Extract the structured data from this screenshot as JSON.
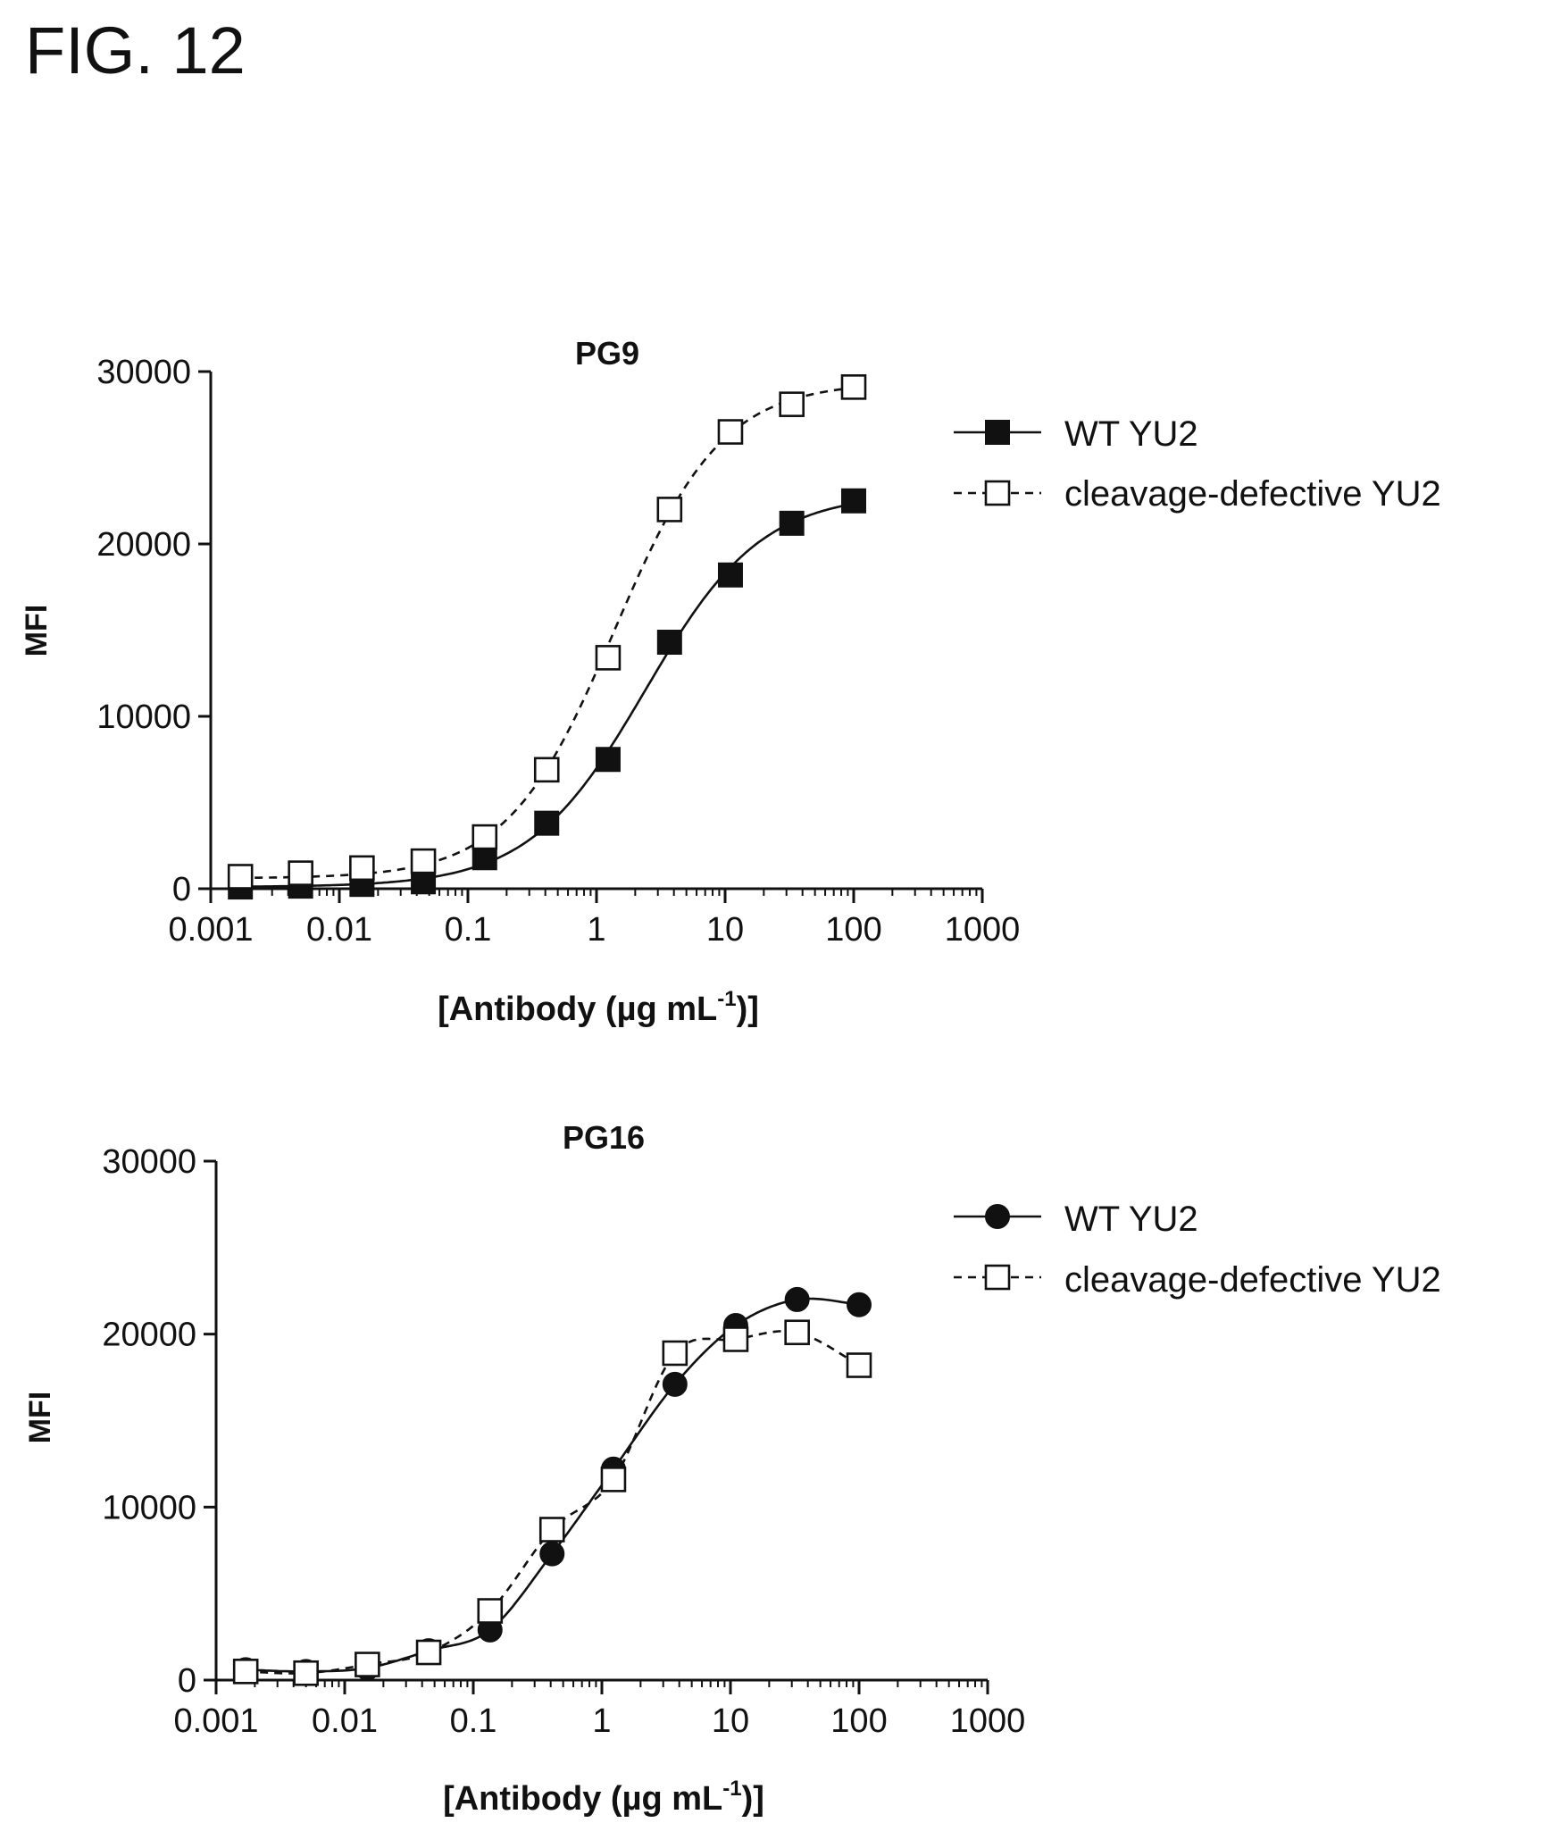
{
  "figure_label": "FIG. 12",
  "colors": {
    "ink": "#111111",
    "open_fill": "#ffffff"
  },
  "chart_data": [
    {
      "type": "line",
      "title": "PG9",
      "xlabel_main": "[Antibody (µg mL",
      "xlabel_sup": "-1",
      "xlabel_tail": ")]",
      "ylabel": "MFI",
      "x_scale": "log",
      "xlim": [
        0.001,
        1000
      ],
      "ylim": [
        0,
        30000
      ],
      "x_ticks": [
        0.001,
        0.01,
        0.1,
        1,
        10,
        100,
        1000
      ],
      "x_tick_labels": [
        "0.001",
        "0.01",
        "0.1",
        "1",
        "10",
        "100",
        "1000"
      ],
      "y_ticks": [
        0,
        10000,
        20000,
        30000
      ],
      "y_tick_labels": [
        "0",
        "10000",
        "20000",
        "30000"
      ],
      "legend_position": "right",
      "series": [
        {
          "name": "WT YU2",
          "marker": "filled-square",
          "line": "solid",
          "x": [
            0.0017,
            0.005,
            0.015,
            0.045,
            0.135,
            0.41,
            1.23,
            3.7,
            11,
            33,
            100
          ],
          "y": [
            100,
            150,
            250,
            400,
            1800,
            3800,
            7500,
            14300,
            18200,
            21200,
            22500
          ]
        },
        {
          "name": "cleavage-defective YU2",
          "marker": "open-square",
          "line": "dashed",
          "x": [
            0.0017,
            0.005,
            0.015,
            0.045,
            0.135,
            0.41,
            1.23,
            3.7,
            11,
            33,
            100
          ],
          "y": [
            700,
            900,
            1200,
            1600,
            3000,
            6900,
            13400,
            22000,
            26500,
            28100,
            29100
          ]
        }
      ]
    },
    {
      "type": "line",
      "title": "PG16",
      "xlabel_main": "[Antibody (µg mL",
      "xlabel_sup": "-1",
      "xlabel_tail": ")]",
      "ylabel": "MFI",
      "x_scale": "log",
      "xlim": [
        0.001,
        1000
      ],
      "ylim": [
        0,
        30000
      ],
      "x_ticks": [
        0.001,
        0.01,
        0.1,
        1,
        10,
        100,
        1000
      ],
      "x_tick_labels": [
        "0.001",
        "0.01",
        "0.1",
        "1",
        "10",
        "100",
        "1000"
      ],
      "y_ticks": [
        0,
        10000,
        20000,
        30000
      ],
      "y_tick_labels": [
        "0",
        "10000",
        "20000",
        "30000"
      ],
      "legend_position": "right",
      "series": [
        {
          "name": "WT YU2",
          "marker": "filled-circle",
          "line": "solid",
          "x": [
            0.0017,
            0.005,
            0.015,
            0.045,
            0.135,
            0.41,
            1.23,
            3.7,
            11,
            33,
            100
          ],
          "y": [
            600,
            500,
            700,
            1700,
            2900,
            7300,
            12200,
            17100,
            20500,
            22000,
            21700
          ]
        },
        {
          "name": "cleavage-defective YU2",
          "marker": "open-square",
          "line": "dashed",
          "x": [
            0.0017,
            0.005,
            0.015,
            0.045,
            0.135,
            0.41,
            1.23,
            3.7,
            11,
            33,
            100
          ],
          "y": [
            500,
            400,
            900,
            1600,
            4000,
            8700,
            11600,
            18900,
            19700,
            20100,
            18200
          ]
        }
      ]
    }
  ]
}
